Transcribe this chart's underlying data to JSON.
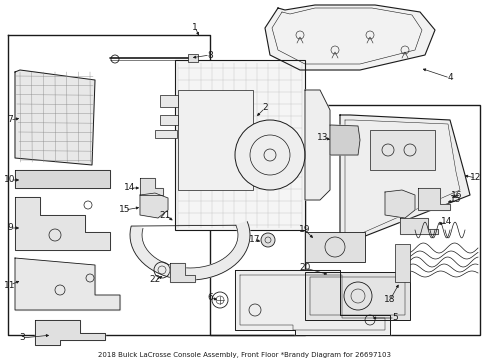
{
  "title": "2018 Buick LaCrosse Console Assembly, Front Floor *Brandy Diagram for 26697103",
  "bg": "#ffffff",
  "lc": "#1a1a1a",
  "fig_w": 4.89,
  "fig_h": 3.6,
  "dpi": 100,
  "fs": 6.5,
  "caption_fs": 5.0
}
